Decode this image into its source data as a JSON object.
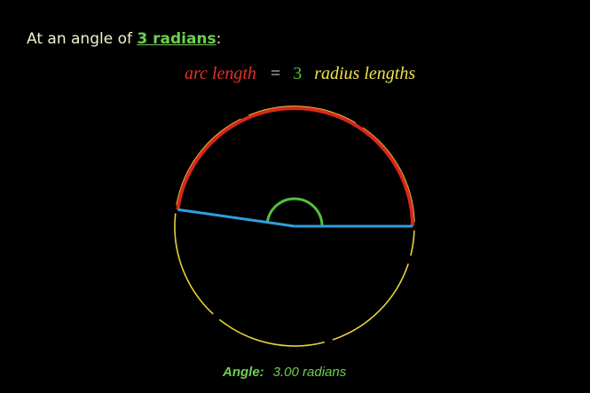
{
  "heading": {
    "prefix": "At an angle of ",
    "link": "3 radians",
    "suffix": ":"
  },
  "equation": {
    "lhs": "arc length",
    "equals": "=",
    "value": "3",
    "rhs": "radius lengths"
  },
  "diagram": {
    "angle_radians": 3.0,
    "unit_circle_segments": 6,
    "colors": {
      "circle": "#e8d23a",
      "arc": "#d9261c",
      "radius": "#2f9fe0",
      "angle_mark": "#55c03e"
    }
  },
  "readout": {
    "label": "Angle:",
    "value": "3.00 radians"
  }
}
